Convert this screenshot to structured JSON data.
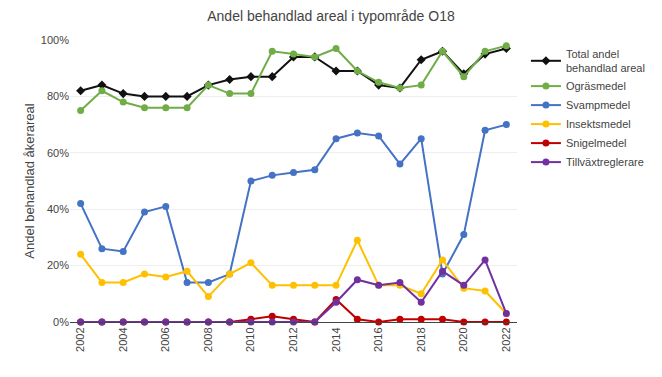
{
  "chart_data": {
    "type": "line",
    "title": "Andel behandlad areal i typområde O18",
    "y_label": "Andel behandlad åkerareal",
    "x": [
      2002,
      2003,
      2004,
      2005,
      2006,
      2007,
      2008,
      2009,
      2010,
      2011,
      2012,
      2013,
      2014,
      2015,
      2016,
      2017,
      2018,
      2019,
      2020,
      2021,
      2022
    ],
    "series": [
      {
        "name": "Total andel\nbehandlad areal",
        "color": "#111111",
        "marker": "diamond",
        "values": [
          82,
          84,
          81,
          80,
          80,
          80,
          84,
          86,
          87,
          87,
          94,
          94,
          89,
          89,
          84,
          83,
          93,
          96,
          88,
          95,
          97
        ]
      },
      {
        "name": "Ogräsmedel",
        "color": "#70ad47",
        "marker": "circle",
        "values": [
          75,
          82,
          78,
          76,
          76,
          76,
          84,
          81,
          81,
          96,
          95,
          94,
          97,
          89,
          85,
          83,
          84,
          96,
          87,
          96,
          98
        ]
      },
      {
        "name": "Svampmedel",
        "color": "#4472c4",
        "marker": "circle",
        "values": [
          42,
          26,
          25,
          39,
          41,
          14,
          14,
          17,
          50,
          52,
          53,
          54,
          65,
          67,
          66,
          56,
          65,
          17,
          31,
          68,
          70
        ]
      },
      {
        "name": "Insektsmedel",
        "color": "#ffc000",
        "marker": "circle",
        "values": [
          24,
          14,
          14,
          17,
          16,
          18,
          9,
          17,
          21,
          13,
          13,
          13,
          13,
          29,
          13,
          13,
          10,
          22,
          12,
          11,
          3
        ]
      },
      {
        "name": "Snigelmedel",
        "color": "#c00000",
        "marker": "circle",
        "values": [
          0,
          0,
          0,
          0,
          0,
          0,
          0,
          0,
          1,
          2,
          1,
          0,
          8,
          1,
          0,
          1,
          1,
          1,
          0,
          0,
          0
        ]
      },
      {
        "name": "Tillväxtreglerare",
        "color": "#7030a0",
        "marker": "circle",
        "values": [
          0,
          0,
          0,
          0,
          0,
          0,
          0,
          0,
          0,
          0,
          0,
          0,
          7,
          15,
          13,
          14,
          7,
          18,
          13,
          22,
          3
        ]
      }
    ],
    "xlim": [
      2001.5,
      2022.5
    ],
    "xticks": [
      2002,
      2004,
      2006,
      2008,
      2010,
      2012,
      2014,
      2016,
      2018,
      2020,
      2022
    ],
    "ylim": [
      0,
      100
    ],
    "yticks": [
      {
        "value": 0,
        "label": "0%"
      },
      {
        "value": 20,
        "label": "20%"
      },
      {
        "value": 40,
        "label": "40%"
      },
      {
        "value": 60,
        "label": "60%"
      },
      {
        "value": 80,
        "label": "80%"
      },
      {
        "value": 100,
        "label": "100%"
      }
    ],
    "grid": true,
    "legend": "right"
  }
}
